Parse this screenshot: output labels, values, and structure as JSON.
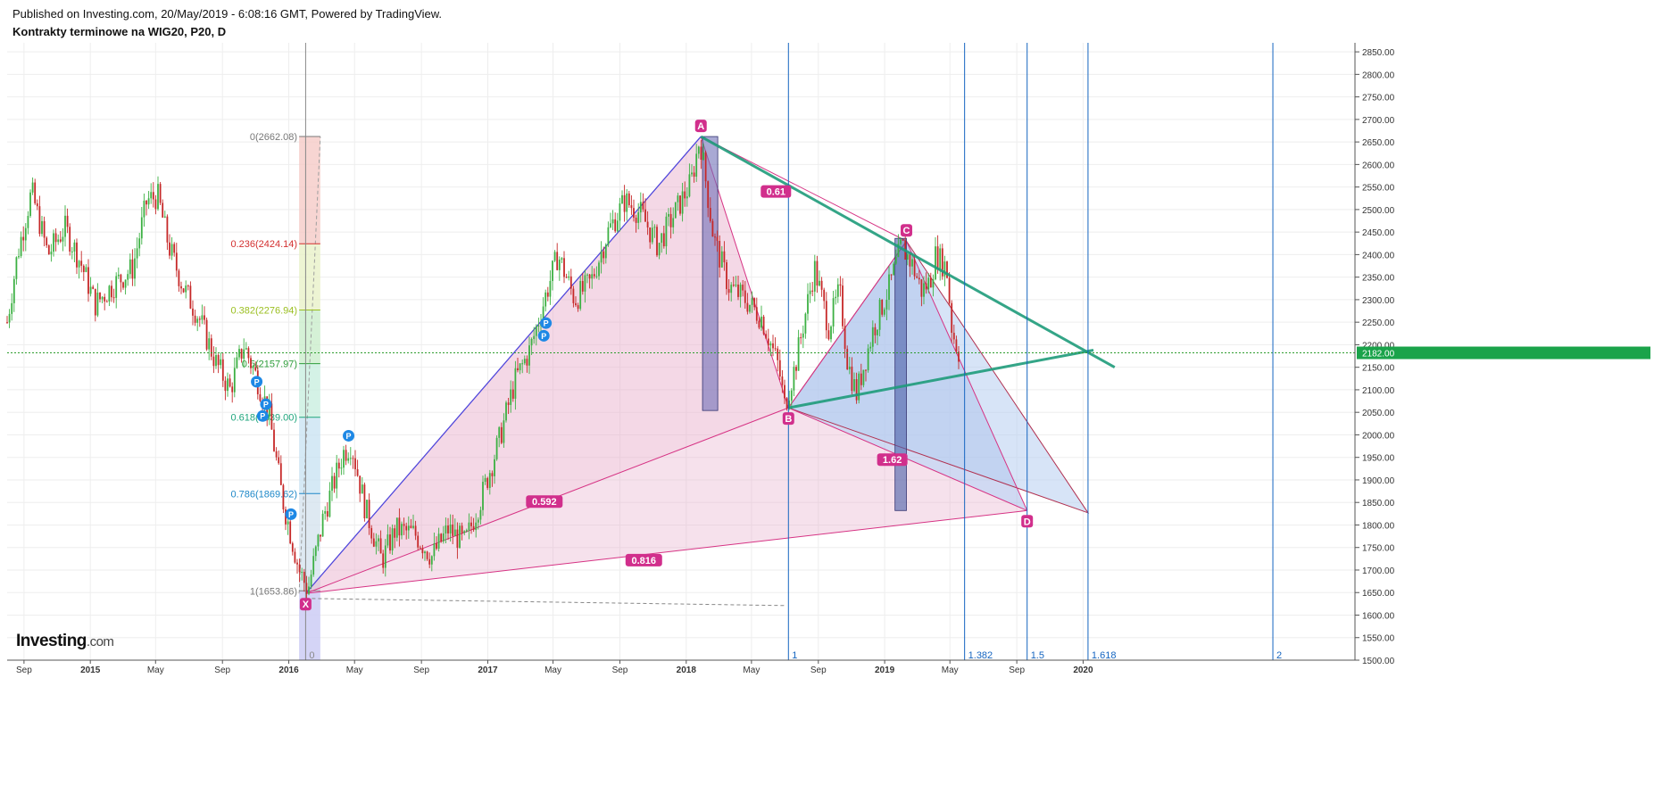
{
  "header": {
    "published": "Published on Investing.com, 20/May/2019 - 6:08:16 GMT, Powered by TradingView.",
    "title": "Kontrakty terminowe na WIG20, P20, D"
  },
  "logo": {
    "main": "Investing",
    "suffix": ".com"
  },
  "colors": {
    "candle_up": "#3cb043",
    "candle_down": "#c62828",
    "pattern_line": "#d63384",
    "pattern_fill": "#e6a8c8",
    "abcd_fill": "#a9b9e8",
    "trend_green": "#1e9b7a",
    "fib_time_line": "#1565c0",
    "price_line": "#2e9d2e",
    "price_label_bg": "#1aa34a"
  },
  "chart_data": {
    "type": "candlestick",
    "y_axis": {
      "ylim": [
        1500,
        2870
      ],
      "ticks": [
        "1500.00",
        "1550.00",
        "1600.00",
        "1650.00",
        "1700.00",
        "1750.00",
        "1800.00",
        "1850.00",
        "1900.00",
        "1950.00",
        "2000.00",
        "2050.00",
        "2100.00",
        "2150.00",
        "2200.00",
        "2250.00",
        "2300.00",
        "2350.00",
        "2400.00",
        "2450.00",
        "2500.00",
        "2550.00",
        "2600.00",
        "2650.00",
        "2700.00",
        "2750.00",
        "2800.00",
        "2850.00"
      ]
    },
    "x_axis": {
      "range": [
        "2014-08-01",
        "2021-05-15"
      ],
      "ticks": [
        {
          "label": "Sep",
          "date": "2014-09-01",
          "bold": false
        },
        {
          "label": "2015",
          "date": "2015-01-01",
          "bold": true
        },
        {
          "label": "May",
          "date": "2015-05-01",
          "bold": false
        },
        {
          "label": "Sep",
          "date": "2015-09-01",
          "bold": false
        },
        {
          "label": "2016",
          "date": "2016-01-01",
          "bold": true
        },
        {
          "label": "May",
          "date": "2016-05-01",
          "bold": false
        },
        {
          "label": "Sep",
          "date": "2016-09-01",
          "bold": false
        },
        {
          "label": "2017",
          "date": "2017-01-01",
          "bold": true
        },
        {
          "label": "May",
          "date": "2017-05-01",
          "bold": false
        },
        {
          "label": "Sep",
          "date": "2017-09-01",
          "bold": false
        },
        {
          "label": "2018",
          "date": "2018-01-01",
          "bold": true
        },
        {
          "label": "May",
          "date": "2018-05-01",
          "bold": false
        },
        {
          "label": "Sep",
          "date": "2018-09-01",
          "bold": false
        },
        {
          "label": "2019",
          "date": "2019-01-01",
          "bold": true
        },
        {
          "label": "May",
          "date": "2019-05-01",
          "bold": false
        },
        {
          "label": "Sep",
          "date": "2019-09-01",
          "bold": false
        },
        {
          "label": "2020",
          "date": "2020-01-01",
          "bold": true
        }
      ]
    },
    "price_path": [
      {
        "date": "2014-08-01",
        "price": 2250
      },
      {
        "date": "2014-08-20",
        "price": 2400
      },
      {
        "date": "2014-09-15",
        "price": 2540
      },
      {
        "date": "2014-10-15",
        "price": 2400
      },
      {
        "date": "2014-11-15",
        "price": 2460
      },
      {
        "date": "2014-12-15",
        "price": 2380
      },
      {
        "date": "2015-01-10",
        "price": 2290
      },
      {
        "date": "2015-02-10",
        "price": 2330
      },
      {
        "date": "2015-03-20",
        "price": 2370
      },
      {
        "date": "2015-04-15",
        "price": 2520
      },
      {
        "date": "2015-05-05",
        "price": 2530
      },
      {
        "date": "2015-05-25",
        "price": 2420
      },
      {
        "date": "2015-06-20",
        "price": 2330
      },
      {
        "date": "2015-07-20",
        "price": 2260
      },
      {
        "date": "2015-08-20",
        "price": 2160
      },
      {
        "date": "2015-09-15",
        "price": 2100
      },
      {
        "date": "2015-10-10",
        "price": 2200
      },
      {
        "date": "2015-11-05",
        "price": 2120
      },
      {
        "date": "2015-11-25",
        "price": 2050
      },
      {
        "date": "2015-12-20",
        "price": 1860
      },
      {
        "date": "2016-01-20",
        "price": 1700
      },
      {
        "date": "2016-02-05",
        "price": 1655
      },
      {
        "date": "2016-03-05",
        "price": 1820
      },
      {
        "date": "2016-04-10",
        "price": 1960
      },
      {
        "date": "2016-04-25",
        "price": 1980
      },
      {
        "date": "2016-05-20",
        "price": 1840
      },
      {
        "date": "2016-06-20",
        "price": 1720
      },
      {
        "date": "2016-07-15",
        "price": 1790
      },
      {
        "date": "2016-08-20",
        "price": 1780
      },
      {
        "date": "2016-09-20",
        "price": 1730
      },
      {
        "date": "2016-10-20",
        "price": 1790
      },
      {
        "date": "2016-11-20",
        "price": 1760
      },
      {
        "date": "2016-12-20",
        "price": 1860
      },
      {
        "date": "2017-01-20",
        "price": 1980
      },
      {
        "date": "2017-02-20",
        "price": 2120
      },
      {
        "date": "2017-03-20",
        "price": 2190
      },
      {
        "date": "2017-04-20",
        "price": 2320
      },
      {
        "date": "2017-05-10",
        "price": 2400
      },
      {
        "date": "2017-06-10",
        "price": 2300
      },
      {
        "date": "2017-07-10",
        "price": 2340
      },
      {
        "date": "2017-08-10",
        "price": 2450
      },
      {
        "date": "2017-09-10",
        "price": 2520
      },
      {
        "date": "2017-10-10",
        "price": 2490
      },
      {
        "date": "2017-11-10",
        "price": 2420
      },
      {
        "date": "2017-12-10",
        "price": 2490
      },
      {
        "date": "2018-01-10",
        "price": 2560
      },
      {
        "date": "2018-01-26",
        "price": 2660
      },
      {
        "date": "2018-02-20",
        "price": 2440
      },
      {
        "date": "2018-03-20",
        "price": 2330
      },
      {
        "date": "2018-04-20",
        "price": 2300
      },
      {
        "date": "2018-05-20",
        "price": 2260
      },
      {
        "date": "2018-06-20",
        "price": 2150
      },
      {
        "date": "2018-07-01",
        "price": 2065
      },
      {
        "date": "2018-07-20",
        "price": 2150
      },
      {
        "date": "2018-08-10",
        "price": 2280
      },
      {
        "date": "2018-08-25",
        "price": 2370
      },
      {
        "date": "2018-09-20",
        "price": 2240
      },
      {
        "date": "2018-10-10",
        "price": 2320
      },
      {
        "date": "2018-10-25",
        "price": 2160
      },
      {
        "date": "2018-11-10",
        "price": 2090
      },
      {
        "date": "2018-12-10",
        "price": 2230
      },
      {
        "date": "2019-01-10",
        "price": 2330
      },
      {
        "date": "2019-02-01",
        "price": 2420
      },
      {
        "date": "2019-02-20",
        "price": 2380
      },
      {
        "date": "2019-03-10",
        "price": 2320
      },
      {
        "date": "2019-03-25",
        "price": 2340
      },
      {
        "date": "2019-04-05",
        "price": 2400
      },
      {
        "date": "2019-04-25",
        "price": 2370
      },
      {
        "date": "2019-05-05",
        "price": 2230
      },
      {
        "date": "2019-05-18",
        "price": 2182
      }
    ],
    "current_price": {
      "value": 2182.0,
      "label": "2182.00"
    },
    "fib_retracement": {
      "date_start": "2016-01-20",
      "date_end": "2016-02-28",
      "levels": [
        {
          "label": "0(2662.08)",
          "price": 2662.08,
          "color": "#787878",
          "fill": "#f4c7c3"
        },
        {
          "label": "0.236(2424.14)",
          "price": 2424.14,
          "color": "#d32f2f",
          "fill": "#e7f0c4"
        },
        {
          "label": "0.382(2276.94)",
          "price": 2276.94,
          "color": "#9bbf20",
          "fill": "#c7ecc8"
        },
        {
          "label": "0.5(2157.97)",
          "price": 2157.97,
          "color": "#2e9d3a",
          "fill": "#c5eddd"
        },
        {
          "label": "0.618(2039.00)",
          "price": 2039.0,
          "color": "#1fa57c",
          "fill": "#c7e2f2"
        },
        {
          "label": "0.786(1869.62)",
          "price": 1869.62,
          "color": "#1e88c8",
          "fill": "#d3e2ee"
        },
        {
          "label": "1(1653.86)",
          "price": 1653.86,
          "color": "#787878",
          "fill": "#ccccf4"
        }
      ],
      "bottom_fill": "#ccccf4"
    },
    "xabcd_pattern": {
      "points": [
        {
          "label": "X",
          "date": "2016-02-01",
          "price": 1648
        },
        {
          "label": "A",
          "date": "2018-01-28",
          "price": 2662
        },
        {
          "label": "B",
          "date": "2018-07-08",
          "price": 2060
        },
        {
          "label": "C",
          "date": "2019-02-10",
          "price": 2430
        },
        {
          "label": "D",
          "date": "2019-09-20",
          "price": 1832
        }
      ],
      "ratios": [
        {
          "label": "0.592",
          "date": "2017-04-15",
          "price": 1852
        },
        {
          "label": "0.816",
          "date": "2017-10-15",
          "price": 1722
        },
        {
          "label": "0.61",
          "date": "2018-06-15",
          "price": 2540
        },
        {
          "label": "1.62",
          "date": "2019-01-15",
          "price": 1945
        }
      ]
    },
    "abcd_extension": {
      "C": {
        "date": "2019-02-10",
        "price": 2430
      },
      "B": {
        "date": "2018-07-08",
        "price": 2060
      },
      "E": {
        "date": "2020-01-10",
        "price": 1827
      }
    },
    "trend_lines": [
      {
        "from": {
          "date": "2018-01-28",
          "price": 2662
        },
        "to": {
          "date": "2020-02-28",
          "price": 2150
        },
        "color": "#1e9b7a"
      },
      {
        "from": {
          "date": "2018-07-08",
          "price": 2060
        },
        "to": {
          "date": "2020-01-20",
          "price": 2188
        },
        "color": "#1e9b7a"
      }
    ],
    "dashed_level": {
      "from_date": "2016-02-01",
      "to_date": "2018-07-01",
      "price": 1637
    },
    "vertical_boxes": [
      {
        "date_start": "2018-01-31",
        "date_end": "2018-02-28",
        "price_top": 2662,
        "price_bottom": 2054,
        "color": "#7070b8"
      },
      {
        "date_start": "2019-01-20",
        "date_end": "2019-02-10",
        "price_top": 2436,
        "price_bottom": 1832,
        "color": "#4a5fa8"
      }
    ],
    "fib_time_zones": [
      {
        "label": "0",
        "date": "2016-02-01",
        "color": "#888888"
      },
      {
        "label": "1",
        "date": "2018-07-08"
      },
      {
        "label": "1.382",
        "date": "2019-05-28"
      },
      {
        "label": "1.5",
        "date": "2019-09-20"
      },
      {
        "label": "1.618",
        "date": "2020-01-10"
      },
      {
        "label": "2",
        "date": "2020-12-15"
      }
    ],
    "pivot_markers": [
      {
        "date": "2015-11-03",
        "price": 2118
      },
      {
        "date": "2015-11-20",
        "price": 2068
      },
      {
        "date": "2015-11-14",
        "price": 2042
      },
      {
        "date": "2016-01-05",
        "price": 1824
      },
      {
        "date": "2016-04-20",
        "price": 1998
      },
      {
        "date": "2017-04-18",
        "price": 2248
      },
      {
        "date": "2017-04-14",
        "price": 2220
      }
    ],
    "pivot_marker_label": "P"
  }
}
